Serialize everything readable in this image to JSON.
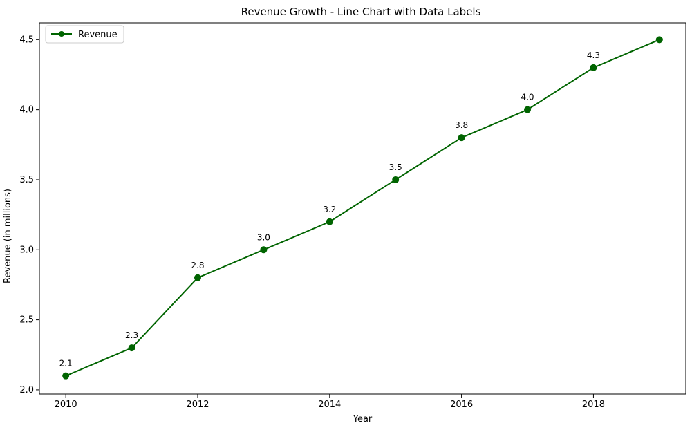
{
  "chart_data": {
    "type": "line",
    "title": "Revenue Growth - Line Chart with Data Labels",
    "xlabel": "Year",
    "ylabel": "Revenue (in millions)",
    "x": [
      2010,
      2011,
      2012,
      2013,
      2014,
      2015,
      2016,
      2017,
      2018,
      2019
    ],
    "x_ticks": [
      "2010",
      "2012",
      "2014",
      "2016",
      "2018"
    ],
    "y_ticks": [
      "2.0",
      "2.5",
      "3.0",
      "3.5",
      "4.0",
      "4.5"
    ],
    "xlim": [
      2009.6,
      2019.4
    ],
    "ylim": [
      1.97,
      4.62
    ],
    "grid": false,
    "legend_position": "top-left",
    "series": [
      {
        "name": "Revenue",
        "color": "#006400",
        "values": [
          2.1,
          2.3,
          2.8,
          3.0,
          3.2,
          3.5,
          3.8,
          4.0,
          4.3,
          4.5
        ],
        "labels": [
          "2.1",
          "2.3",
          "2.8",
          "3.0",
          "3.2",
          "3.5",
          "3.8",
          "4.0",
          "4.3",
          ""
        ]
      }
    ]
  }
}
